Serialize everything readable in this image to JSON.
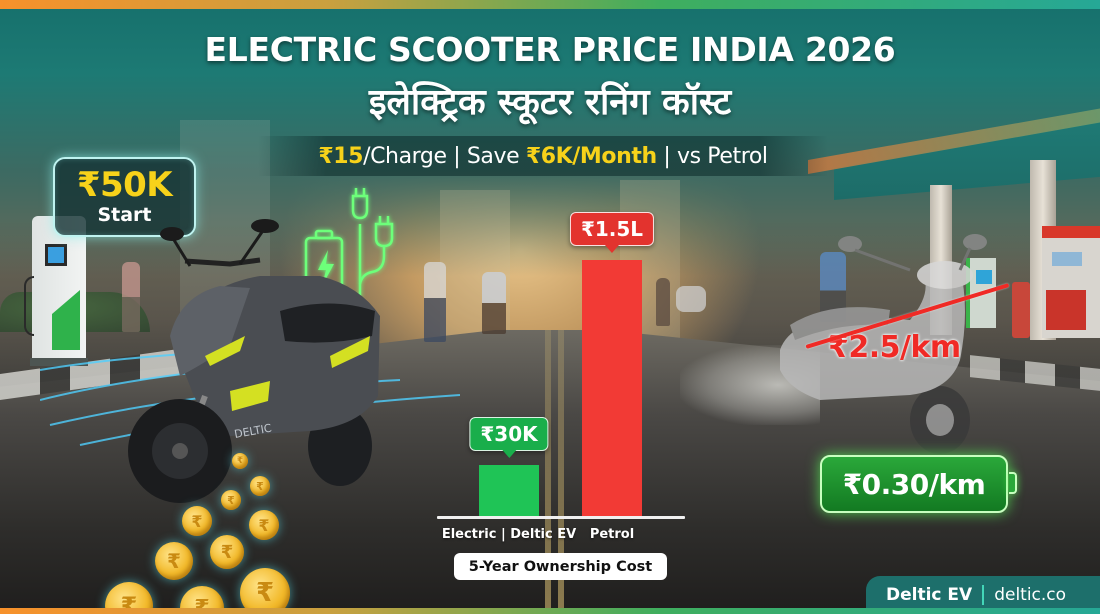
{
  "header": {
    "title": "ELECTRIC SCOOTER PRICE INDIA 2026",
    "title_hindi": "इलेक्ट्रिक स्कूटर रनिंग कॉस्ट",
    "subtitle": {
      "charge_price": "₹15",
      "charge_text": "/Charge | Save ",
      "savings": "₹6K/Month",
      "vs_text": " | vs Petrol"
    }
  },
  "start_badge": {
    "price": "₹50K",
    "label": "Start"
  },
  "electric_scooter": {
    "brand_decal": "DELTIC"
  },
  "petrol_comparison": {
    "old_cost": "₹2.5/km",
    "ev_cost": "₹0.30/km"
  },
  "chart_data": {
    "type": "bar",
    "title": "5-Year Ownership Cost",
    "categories": [
      "Electric | Deltic EV",
      "Petrol"
    ],
    "values": [
      30000,
      150000
    ],
    "value_labels": [
      "₹30K",
      "₹1.5L"
    ],
    "colors": [
      "#1fc456",
      "#f23a35"
    ],
    "xlabel": "",
    "ylabel": "",
    "grid": false,
    "legend": "none"
  },
  "chart": {
    "bars": [
      {
        "label": "Electric | Deltic EV",
        "value_label": "₹30K"
      },
      {
        "label": "Petrol",
        "value_label": "₹1.5L"
      }
    ],
    "caption": "5-Year Ownership Cost"
  },
  "icons": {
    "battery": "battery-charging-icon",
    "plug": "plug-icon",
    "coin": "rupee-coin-icon",
    "coin_glyph": "₹"
  },
  "footer": {
    "brand": "Deltic EV",
    "url": "deltic.co"
  },
  "colors": {
    "accent_yellow": "#f7d21a",
    "electric_green": "#1fc456",
    "petrol_red": "#f23a35",
    "brand_teal": "#1d6f6b"
  }
}
